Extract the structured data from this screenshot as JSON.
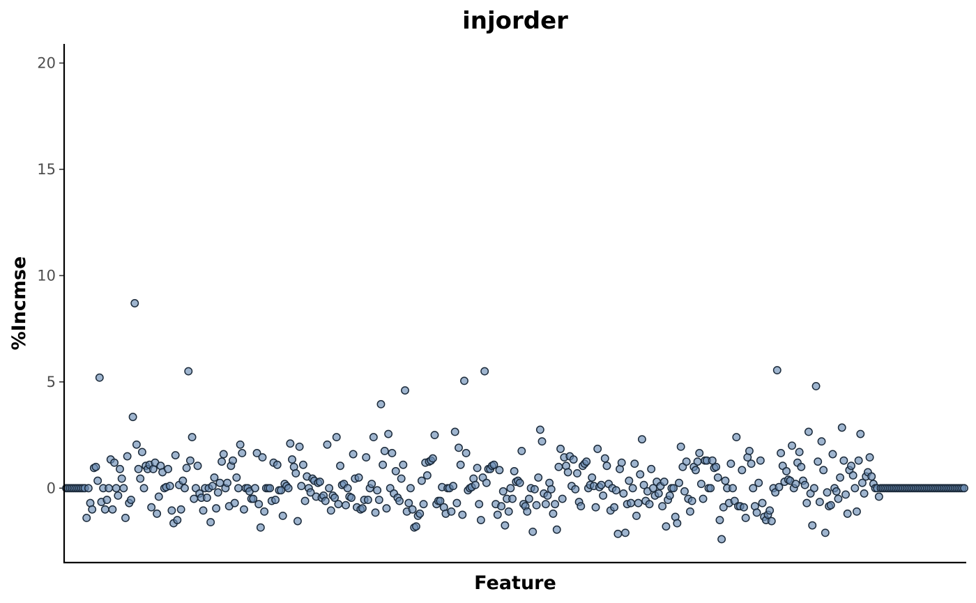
{
  "chart_data": {
    "type": "scatter",
    "title": "injorder",
    "xlabel": "Feature",
    "ylabel": "%Incmse",
    "ylim": [
      -3.5,
      20.9
    ],
    "yticks": [
      0,
      5,
      10,
      15,
      20
    ],
    "xticks": [],
    "grid": false,
    "colors": {
      "point_fill": "#6b8eb5",
      "point_stroke": "#1b2a3a"
    },
    "series": [
      {
        "values": [
          0,
          0,
          0,
          0,
          0,
          0,
          0,
          0,
          0,
          0,
          0,
          -1.4,
          0,
          -0.7,
          -1,
          0.95,
          1,
          0.35,
          5.2,
          -0.65,
          0,
          -1,
          -0.55,
          0,
          1.35,
          -1,
          1.2,
          0,
          -0.35,
          0.9,
          0.45,
          0,
          -1.4,
          1.5,
          -0.7,
          -0.55,
          3.35,
          8.7,
          2.05,
          0.9,
          0.45,
          1.7,
          0,
          1.05,
          0.9,
          1.1,
          -0.9,
          0.9,
          1.2,
          -1.2,
          -0.4,
          1.05,
          0.75,
          0,
          0.05,
          0.9,
          0.1,
          -1.05,
          -1.65,
          1.55,
          -1.5,
          0.15,
          -1,
          0.35,
          0,
          0.95,
          5.5,
          1.3,
          2.4,
          -0.5,
          0,
          1.05,
          -0.25,
          -0.45,
          -1.05,
          0,
          -0.45,
          0,
          -1.6,
          0.1,
          0.5,
          -0.95,
          -0.2,
          0.25,
          1.25,
          1.6,
          0,
          0.25,
          -0.85,
          1.05,
          1.3,
          -0.7,
          0.5,
          0,
          2.05,
          1.65,
          -1,
          0,
          0,
          -0.15,
          -0.5,
          -0.5,
          0,
          1.65,
          -0.75,
          -1.85,
          1.45,
          -1.1,
          0,
          0,
          0,
          -0.6,
          1.2,
          -0.55,
          1.1,
          -0.1,
          -0.1,
          -1.3,
          0.2,
          0.1,
          0,
          2.1,
          1.35,
          1,
          0.7,
          -1.55,
          1.95,
          0.1,
          1.1,
          -0.6,
          0.55,
          0,
          -0.2,
          0.45,
          0.35,
          -0.4,
          0.25,
          0.3,
          -0.45,
          -0.35,
          -0.6,
          2.05,
          0,
          -1.05,
          -0.35,
          -0.45,
          2.4,
          -0.75,
          1.05,
          0.15,
          0.2,
          -0.8,
          0,
          -0.4,
          -0.45,
          1.6,
          0.45,
          -0.9,
          0.5,
          -1,
          -0.95,
          -0.55,
          1.45,
          -0.55,
          0,
          0.2,
          2.4,
          -1.15,
          -0.1,
          -0.55,
          3.95,
          1.1,
          1.75,
          -0.95,
          2.55,
          0,
          1.65,
          -0.25,
          0.8,
          -0.45,
          -0.6,
          0.45,
          1.1,
          4.6,
          -1.1,
          -0.7,
          0,
          -1,
          -1.85,
          -1.8,
          -1.3,
          -1.2,
          0.35,
          -0.75,
          1.2,
          0.6,
          1.25,
          1.3,
          1.4,
          2.5,
          -0.75,
          -0.6,
          -0.6,
          0.05,
          -0.9,
          -1.2,
          0,
          0,
          -1.1,
          0.1,
          2.65,
          -0.7,
          1.9,
          1.1,
          -1.25,
          5.05,
          1.65,
          -0.1,
          0,
          0.05,
          0.45,
          0.15,
          0.95,
          -0.75,
          -1.5,
          0.5,
          5.5,
          0.25,
          0.9,
          0.9,
          1.05,
          1.1,
          -0.75,
          -1.25,
          0.85,
          -0.85,
          -0.15,
          -1.75,
          -0.5,
          -1.1,
          0,
          -0.5,
          0.8,
          0.3,
          0.35,
          0.25,
          1.75,
          -0.75,
          -0.85,
          -1.1,
          -0.5,
          0,
          -2.05,
          -0.05,
          -0.8,
          0.5,
          2.75,
          2.2,
          -0.25,
          -0.75,
          -0.35,
          0.25,
          -0.05,
          -1.2,
          -0.75,
          -1.95,
          1,
          1.85,
          -0.5,
          1.45,
          1.05,
          0.75,
          1.5,
          0.1,
          1.35,
          -0.05,
          0.7,
          -0.65,
          -0.85,
          1.05,
          1.15,
          1.25,
          0,
          0.15,
          0.5,
          0.1,
          -0.9,
          1.85,
          0.05,
          0.15,
          -0.35,
          1.4,
          1.05,
          0.2,
          -1.05,
          0,
          -0.9,
          -0.1,
          -2.15,
          0.9,
          1.2,
          -0.25,
          -2.1,
          -0.75,
          0.35,
          -0.7,
          0,
          1.15,
          -1.3,
          -0.7,
          0.65,
          2.3,
          0.15,
          -0.6,
          -0.15,
          -0.75,
          0.9,
          0,
          -0.35,
          0.3,
          -0.25,
          0.1,
          -0.85,
          0.3,
          -1.8,
          -0.55,
          -0.35,
          0,
          0,
          -1.35,
          -1.65,
          0.25,
          1.95,
          1,
          -0.15,
          1.25,
          -0.5,
          -1.1,
          -0.6,
          1,
          0.85,
          1.25,
          1.65,
          0.2,
          -0.5,
          1.3,
          1.3,
          0,
          0,
          1.3,
          0.95,
          1,
          0.5,
          -1.5,
          -2.4,
          -0.9,
          0.35,
          0,
          -0.7,
          1.15,
          0,
          -0.6,
          2.4,
          -0.85,
          -0.85,
          0.85,
          -0.9,
          -1.4,
          1.45,
          1.75,
          1.15,
          0,
          -0.85,
          -1.15,
          0.25,
          1.3,
          -0.7,
          -1.35,
          -1.5,
          -1.25,
          -1.05,
          -1.55,
          0,
          -0.2,
          5.55,
          0.05,
          1.65,
          1.05,
          0.3,
          0.8,
          0.4,
          0.35,
          2,
          0,
          0.2,
          1.2,
          1.7,
          1,
          0.35,
          0.15,
          -0.7,
          2.65,
          -0.25,
          -1.75,
          0,
          4.8,
          1.25,
          -0.65,
          2.2,
          0.85,
          -2.1,
          -0.2,
          -0.85,
          -0.8,
          1.6,
          0,
          -0.15,
          -0.5,
          0.5,
          2.85,
          1.3,
          -0.3,
          -1.2,
          0.85,
          1.05,
          0.6,
          0,
          -1.1,
          1.3,
          2.55,
          0.25,
          -0.25,
          0.55,
          0.75,
          1.45,
          0.55,
          0.2,
          0,
          0,
          -0.4,
          0,
          0,
          0,
          0,
          0,
          0,
          0,
          0,
          0,
          0,
          0,
          0,
          0,
          0,
          0,
          0,
          0,
          0,
          0,
          0,
          0,
          0,
          0,
          0,
          0,
          0,
          0,
          0,
          0,
          0,
          0,
          0,
          0,
          0,
          0,
          0,
          0,
          0,
          0,
          0,
          0,
          0,
          0,
          0,
          0,
          0
        ]
      }
    ]
  }
}
